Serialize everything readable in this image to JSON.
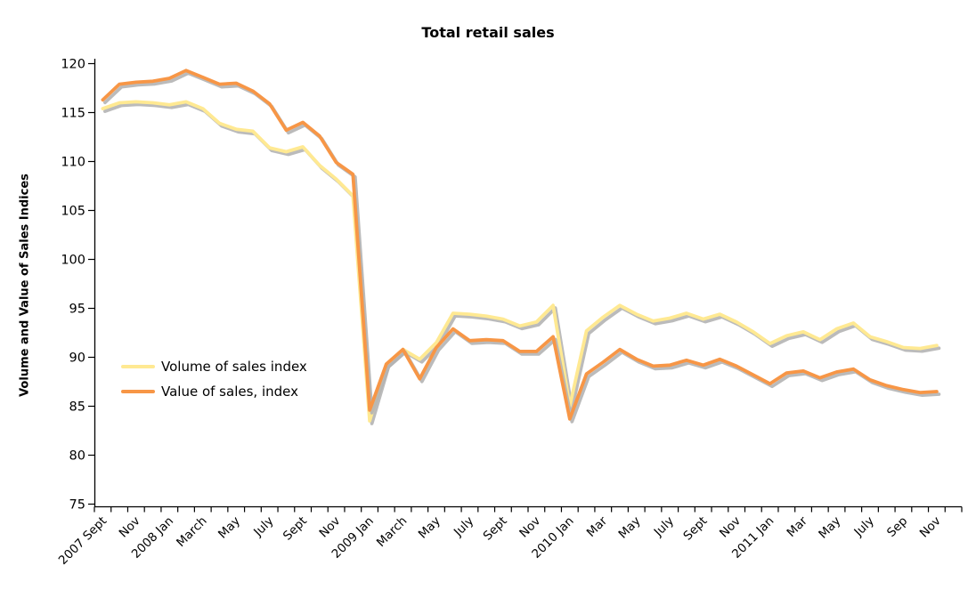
{
  "title": "Total retail sales",
  "y_axis_label": "Volume and Value of Sales Indices",
  "legend": {
    "items": [
      {
        "label": "Volume of sales index",
        "color": "#ffe992"
      },
      {
        "label": "Value of sales, index",
        "color": "#f79646"
      }
    ]
  },
  "chart_data": {
    "type": "line",
    "title": "Total retail sales",
    "xlabel": "",
    "ylabel": "Volume and Value of Sales Indices",
    "ylim": [
      75,
      120
    ],
    "ytick_step": 5,
    "grid": false,
    "legend_position": "inside-left",
    "shadow_color": "#b4b4b4",
    "x": [
      "2007 Sep",
      "2007 Oct",
      "2007 Nov",
      "2007 Dec",
      "2008 Jan",
      "2008 Feb",
      "2008 Mar",
      "2008 Apr",
      "2008 May",
      "2008 Jun",
      "2008 Jul",
      "2008 Aug",
      "2008 Sep",
      "2008 Oct",
      "2008 Nov",
      "2008 Dec",
      "2009 Jan",
      "2009 Feb",
      "2009 Mar",
      "2009 Apr",
      "2009 May",
      "2009 Jun",
      "2009 Jul",
      "2009 Aug",
      "2009 Sep",
      "2009 Oct",
      "2009 Nov",
      "2009 Dec",
      "2010 Jan",
      "2010 Feb",
      "2010 Mar",
      "2010 Apr",
      "2010 May",
      "2010 Jun",
      "2010 Jul",
      "2010 Aug",
      "2010 Sep",
      "2010 Oct",
      "2010 Nov",
      "2010 Dec",
      "2011 Jan",
      "2011 Feb",
      "2011 Mar",
      "2011 Apr",
      "2011 May",
      "2011 Jun",
      "2011 Jul",
      "2011 Aug",
      "2011 Sep",
      "2011 Oct",
      "2011 Nov"
    ],
    "x_tick_labels": [
      "2007 Sept",
      "Nov",
      "2008 Jan",
      "March",
      "May",
      "July",
      "Sept",
      "Nov",
      "2009 Jan",
      "March",
      "May",
      "July",
      "Sept",
      "Nov",
      "2010 Jan",
      "Mar",
      "May",
      "July",
      "Sept",
      "Nov",
      "2011 Jan",
      "Mar",
      "May",
      "July",
      "Sep",
      "Nov"
    ],
    "x_tick_every": 2,
    "series": [
      {
        "name": "Volume of sales index",
        "color": "#ffe992",
        "values": [
          115.4,
          116.0,
          116.1,
          116.0,
          115.8,
          116.1,
          115.4,
          113.9,
          113.3,
          113.1,
          111.4,
          111.0,
          111.5,
          109.6,
          108.2,
          106.5,
          83.5,
          89.3,
          90.8,
          89.8,
          91.5,
          94.5,
          94.4,
          94.2,
          93.9,
          93.2,
          93.6,
          95.3,
          85.0,
          92.7,
          94.1,
          95.3,
          94.4,
          93.7,
          94.0,
          94.5,
          93.9,
          94.4,
          93.6,
          92.6,
          91.4,
          92.2,
          92.6,
          91.8,
          92.9,
          93.5,
          92.1,
          91.6,
          91.0,
          90.9,
          91.2
        ]
      },
      {
        "name": "Value of sales, index",
        "color": "#f79646",
        "values": [
          116.3,
          117.9,
          118.1,
          118.2,
          118.5,
          119.3,
          118.6,
          117.9,
          118.0,
          117.2,
          115.9,
          113.2,
          114.0,
          112.6,
          109.9,
          108.7,
          84.6,
          89.3,
          90.8,
          87.8,
          91.0,
          92.9,
          91.7,
          91.8,
          91.7,
          90.6,
          90.6,
          92.1,
          83.7,
          88.3,
          89.5,
          90.8,
          89.8,
          89.1,
          89.2,
          89.7,
          89.2,
          89.8,
          89.1,
          88.2,
          87.3,
          88.4,
          88.6,
          87.9,
          88.5,
          88.8,
          87.7,
          87.1,
          86.7,
          86.4,
          86.5
        ]
      }
    ]
  }
}
